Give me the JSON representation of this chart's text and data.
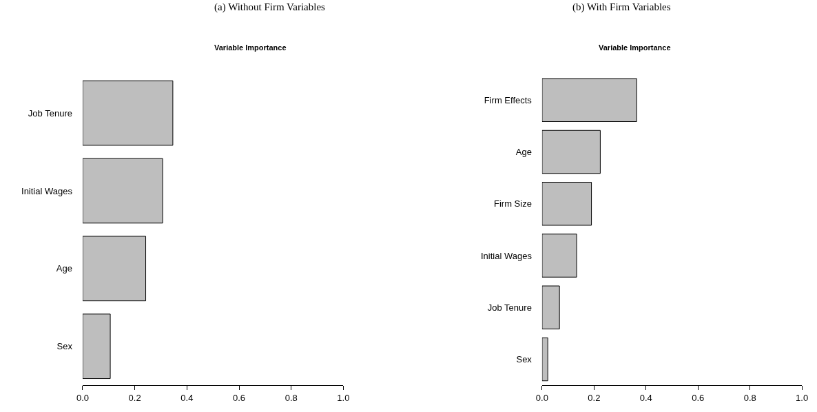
{
  "chart_data": [
    {
      "type": "bar",
      "title": "(a) Without Firm Variables",
      "subtitle": "Variable Importance",
      "orientation": "horizontal",
      "categories": [
        "Job Tenure",
        "Initial Wages",
        "Age",
        "Sex"
      ],
      "values": [
        0.346,
        0.307,
        0.242,
        0.106
      ],
      "color": "#bebebe",
      "xlim": [
        0,
        1
      ],
      "xticks": [
        {
          "value": 0,
          "label": "0.0"
        },
        {
          "value": 0.2,
          "label": "0.2"
        },
        {
          "value": 0.4,
          "label": "0.4"
        },
        {
          "value": 0.6,
          "label": "0.6"
        },
        {
          "value": 0.8,
          "label": "0.8"
        },
        {
          "value": 1,
          "label": "1.0"
        }
      ]
    },
    {
      "type": "bar",
      "title": "(b) With Firm Variables",
      "subtitle": "Variable Importance",
      "orientation": "horizontal",
      "categories": [
        "Firm Effects",
        "Age",
        "Firm Size",
        "Initial Wages",
        "Job Tenure",
        "Sex"
      ],
      "values": [
        0.364,
        0.224,
        0.19,
        0.133,
        0.067,
        0.022
      ],
      "color": "#bebebe",
      "xlim": [
        0,
        1
      ],
      "xticks": [
        {
          "value": 0,
          "label": "0.0"
        },
        {
          "value": 0.2,
          "label": "0.2"
        },
        {
          "value": 0.4,
          "label": "0.4"
        },
        {
          "value": 0.6,
          "label": "0.6"
        },
        {
          "value": 0.8,
          "label": "0.8"
        },
        {
          "value": 1,
          "label": "1.0"
        }
      ]
    }
  ]
}
